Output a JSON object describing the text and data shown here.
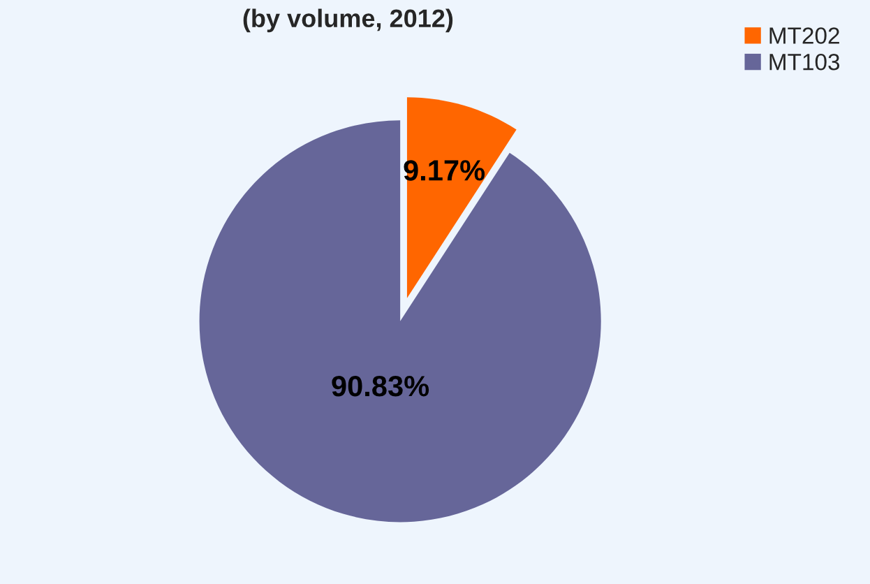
{
  "chart_data": {
    "type": "pie",
    "title": "(by volume, 2012)",
    "categories": [
      "MT202",
      "MT103"
    ],
    "values": [
      9.17,
      90.83
    ],
    "colors": [
      "#ff6600",
      "#666699"
    ],
    "value_labels": [
      "9.17%",
      "90.83%"
    ],
    "legend": "top right"
  }
}
